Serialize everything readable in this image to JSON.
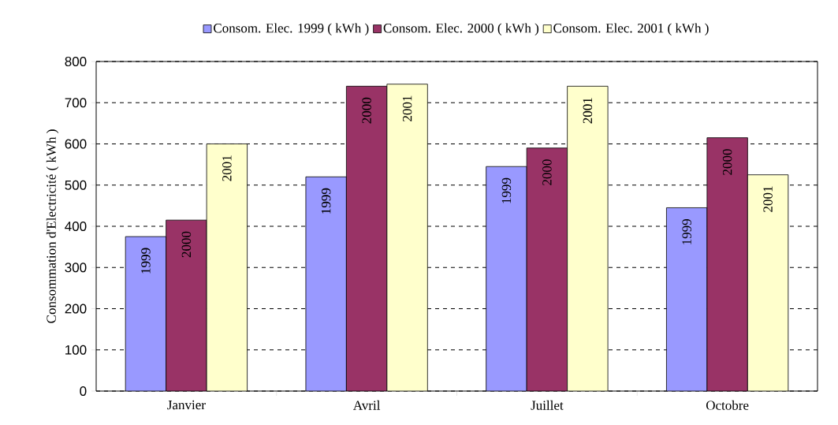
{
  "chart_data": {
    "type": "bar",
    "ylabel": "Consommation d'Electricité ( kWh )",
    "categories": [
      "Janvier",
      "Avril",
      "Juillet",
      "Octobre"
    ],
    "series": [
      {
        "name": "Consom. Elec. 1999 ( kWh )",
        "color": "#9999ff",
        "values": [
          375,
          520,
          545,
          445
        ]
      },
      {
        "name": "Consom. Elec. 2000 ( kWh )",
        "color": "#993366",
        "values": [
          415,
          740,
          590,
          615
        ]
      },
      {
        "name": "Consom. Elec. 2001 ( kWh )",
        "color": "#ffffcc",
        "values": [
          600,
          745,
          740,
          525
        ]
      }
    ],
    "annotations": [
      "1999",
      "1999",
      "1999",
      "1999",
      "2000",
      "2000",
      "2000",
      "2000",
      "2001",
      "2001",
      "2001",
      "2001"
    ],
    "ylim": [
      0,
      800
    ],
    "yticks": [
      0,
      100,
      200,
      300,
      400,
      500,
      600,
      700,
      800
    ],
    "grid": "y",
    "legend": "top"
  }
}
